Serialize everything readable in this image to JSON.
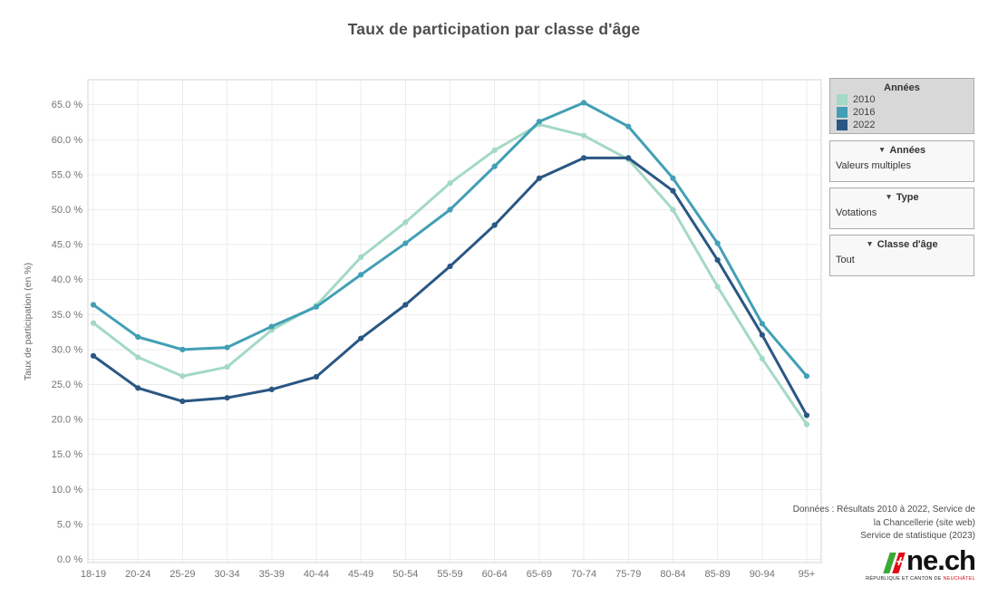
{
  "title": "Taux de participation par classe d'âge",
  "chart_data": {
    "type": "line",
    "categories": [
      "18-19",
      "20-24",
      "25-29",
      "30-34",
      "35-39",
      "40-44",
      "45-49",
      "50-54",
      "55-59",
      "60-64",
      "65-69",
      "70-74",
      "75-79",
      "80-84",
      "85-89",
      "90-94",
      "95+"
    ],
    "series": [
      {
        "name": "2010",
        "color": "#a3d9c5",
        "values": [
          33.8,
          28.9,
          26.2,
          27.5,
          32.8,
          36.3,
          43.2,
          48.2,
          53.8,
          58.5,
          62.2,
          60.6,
          57.2,
          50.0,
          39.0,
          28.7,
          19.3
        ]
      },
      {
        "name": "2016",
        "color": "#429fb5",
        "values": [
          36.4,
          31.8,
          30.0,
          30.3,
          33.3,
          36.1,
          40.7,
          45.2,
          50.0,
          56.2,
          62.6,
          65.3,
          61.9,
          54.5,
          45.2,
          33.7,
          26.2
        ]
      },
      {
        "name": "2022",
        "color": "#2a5783",
        "values": [
          29.1,
          24.5,
          22.6,
          23.1,
          24.3,
          26.1,
          31.6,
          36.4,
          41.9,
          47.8,
          54.5,
          57.4,
          57.4,
          52.7,
          42.8,
          32.1,
          20.6
        ]
      }
    ],
    "title": "Taux de participation par classe d'âge",
    "xlabel": "",
    "ylabel": "Taux de participation (en %)",
    "ylim": [
      0,
      67.5
    ],
    "yticks": [
      0,
      5,
      10,
      15,
      20,
      25,
      30,
      35,
      40,
      45,
      50,
      55,
      60,
      65
    ],
    "ytick_suffix": " %",
    "grid": true,
    "legend_position": "right",
    "legend_title": "Années"
  },
  "legend": {
    "title": "Années"
  },
  "filters": [
    {
      "arrow": "▼",
      "label": "Années",
      "value": "Valeurs multiples"
    },
    {
      "arrow": "▼",
      "label": "Type",
      "value": "Votations"
    },
    {
      "arrow": "▼",
      "label": "Classe d'âge",
      "value": "Tout"
    }
  ],
  "footnote": {
    "lines": [
      "Données : Résultats 2010 à 2022, Service de",
      "la Chancellerie (site web)",
      "Service de statistique (2023)"
    ]
  },
  "logo": {
    "text": "ne.ch",
    "tagline_prefix": "RÉPUBLIQUE ET CANTON DE ",
    "tagline_highlight": "NEUCHÂTEL",
    "green": "#3aaa35",
    "red": "#e30613"
  }
}
